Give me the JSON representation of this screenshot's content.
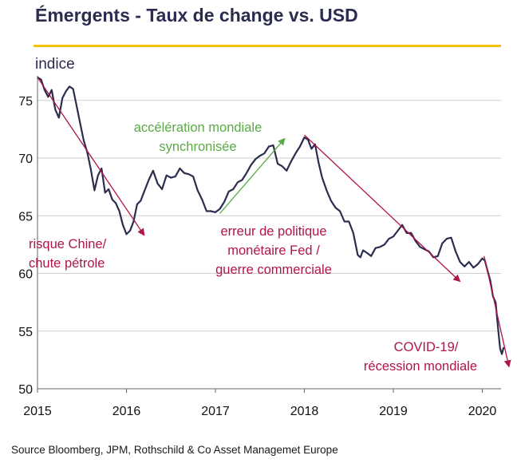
{
  "title": "Émergents - Taux de change vs. USD",
  "unit_label": "indice",
  "source": "Source Bloomberg, JPM, Rothschild & Co Asset Managemet Europe",
  "colors": {
    "line": "#2b2d4f",
    "arrow_red": "#b0154a",
    "arrow_green": "#5aaa46",
    "accent_yellow": "#f2c400",
    "grid": "#cfcfcf"
  },
  "chart_data": {
    "type": "line",
    "title": "Émergents - Taux de change vs. USD",
    "ylabel": "indice",
    "xlabel": "",
    "xlim": [
      2015.0,
      2020.25
    ],
    "ylim": [
      50,
      78
    ],
    "yticks": [
      50,
      55,
      60,
      65,
      70,
      75
    ],
    "xticks": [
      2015,
      2016,
      2017,
      2018,
      2019,
      2020
    ],
    "ytick_labels": [
      "50",
      "55",
      "60",
      "65",
      "70",
      "75"
    ],
    "xtick_labels": [
      "2015",
      "2016",
      "2017",
      "2018",
      "2019",
      "2020"
    ],
    "grid": "horizontal",
    "series": [
      {
        "x": [
          2015.0,
          2015.04,
          2015.08,
          2015.12,
          2015.16,
          2015.2,
          2015.24,
          2015.28,
          2015.32,
          2015.36,
          2015.4,
          2015.44,
          2015.48,
          2015.52,
          2015.56,
          2015.6,
          2015.64,
          2015.68,
          2015.72,
          2015.76,
          2015.8,
          2015.84,
          2015.88,
          2015.92,
          2015.96,
          2016.0,
          2016.04,
          2016.08,
          2016.12,
          2016.16,
          2016.2,
          2016.25,
          2016.3,
          2016.35,
          2016.4,
          2016.45,
          2016.5,
          2016.55,
          2016.6,
          2016.65,
          2016.7,
          2016.75,
          2016.8,
          2016.85,
          2016.9,
          2016.95,
          2017.0,
          2017.05,
          2017.1,
          2017.15,
          2017.2,
          2017.25,
          2017.3,
          2017.35,
          2017.4,
          2017.45,
          2017.5,
          2017.55,
          2017.6,
          2017.65,
          2017.7,
          2017.75,
          2017.8,
          2017.85,
          2017.9,
          2017.95,
          2018.0,
          2018.04,
          2018.08,
          2018.12,
          2018.16,
          2018.2,
          2018.25,
          2018.3,
          2018.35,
          2018.4,
          2018.45,
          2018.5,
          2018.55,
          2018.6,
          2018.63,
          2018.66,
          2018.7,
          2018.75,
          2018.8,
          2018.85,
          2018.9,
          2018.95,
          2019.0,
          2019.05,
          2019.1,
          2019.15,
          2019.2,
          2019.25,
          2019.3,
          2019.35,
          2019.4,
          2019.45,
          2019.5,
          2019.55,
          2019.6,
          2019.65,
          2019.7,
          2019.75,
          2019.8,
          2019.85,
          2019.9,
          2019.95,
          2020.0,
          2020.03,
          2020.06,
          2020.09,
          2020.12,
          2020.15,
          2020.18,
          2020.2,
          2020.22,
          2020.24
        ],
        "values": [
          77.0,
          76.8,
          75.9,
          75.3,
          75.9,
          74.2,
          73.5,
          75.2,
          75.8,
          76.2,
          76.0,
          74.5,
          73.0,
          71.5,
          70.5,
          69.0,
          67.2,
          68.5,
          69.1,
          67.0,
          67.3,
          66.4,
          66.1,
          65.4,
          64.2,
          63.4,
          63.7,
          64.5,
          66.0,
          66.3,
          67.1,
          68.1,
          68.9,
          67.8,
          67.3,
          68.5,
          68.3,
          68.4,
          69.1,
          68.7,
          68.6,
          68.4,
          67.2,
          66.4,
          65.4,
          65.4,
          65.3,
          65.6,
          66.2,
          67.1,
          67.3,
          67.9,
          68.1,
          68.7,
          69.4,
          69.9,
          70.2,
          70.4,
          71.0,
          71.1,
          69.5,
          69.3,
          68.9,
          69.7,
          70.4,
          71.0,
          71.8,
          71.6,
          70.8,
          71.2,
          69.6,
          68.3,
          67.2,
          66.3,
          65.7,
          65.4,
          64.5,
          64.5,
          63.5,
          61.6,
          61.4,
          62.0,
          61.8,
          61.5,
          62.2,
          62.3,
          62.5,
          63.0,
          63.2,
          63.7,
          64.2,
          63.5,
          63.5,
          62.8,
          62.3,
          62.1,
          61.9,
          61.4,
          61.5,
          62.6,
          63.0,
          63.1,
          61.9,
          61.0,
          60.6,
          61.0,
          60.5,
          60.8,
          61.3,
          61.1,
          60.2,
          59.4,
          58.0,
          57.5,
          55.0,
          53.5,
          53.0,
          53.6
        ]
      }
    ],
    "annotations": [
      {
        "text": "accélération mondiale",
        "color": "green"
      },
      {
        "text": "synchronisée",
        "color": "green"
      },
      {
        "text": "risque Chine/",
        "color": "red"
      },
      {
        "text": "chute pétrole",
        "color": "red"
      },
      {
        "text": "erreur de politique",
        "color": "red"
      },
      {
        "text": "monétaire  Fed /",
        "color": "red"
      },
      {
        "text": "guerre commerciale",
        "color": "red"
      },
      {
        "text": "COVID-19/",
        "color": "red"
      },
      {
        "text": "récession mondiale",
        "color": "red"
      }
    ],
    "trend_arrows": [
      {
        "from": [
          2015.0,
          77.0
        ],
        "to": [
          2016.2,
          63.3
        ],
        "color": "red"
      },
      {
        "from": [
          2017.05,
          65.2
        ],
        "to": [
          2017.78,
          71.7
        ],
        "color": "green"
      },
      {
        "from": [
          2018.0,
          72.0
        ],
        "to": [
          2019.75,
          59.3
        ],
        "color": "red"
      },
      {
        "from": [
          2020.02,
          61.5
        ],
        "to": [
          2020.3,
          51.9
        ],
        "color": "red"
      }
    ]
  }
}
